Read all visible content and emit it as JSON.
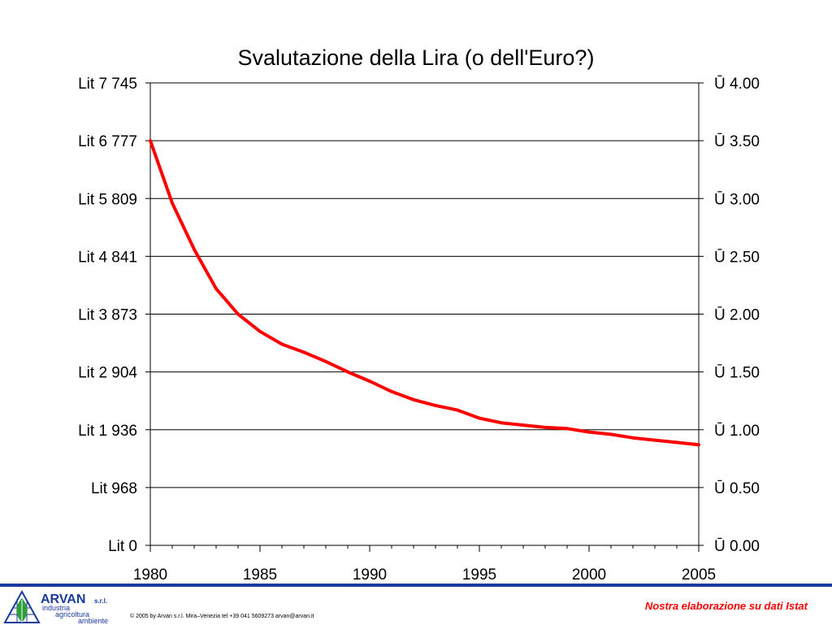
{
  "chart_data": {
    "type": "line",
    "title": "Svalutazione della Lira (o dell'Euro?)",
    "x_ticks": [
      "1980",
      "1985",
      "1990",
      "1995",
      "2000",
      "2005"
    ],
    "xlim": [
      1980,
      2005
    ],
    "left_axis": {
      "ylim": [
        0,
        7745
      ],
      "tick_labels": [
        "Lit 0",
        "Lit 968",
        "Lit 1 936",
        "Lit 2 904",
        "Lit 3 873",
        "Lit 4 841",
        "Lit 5 809",
        "Lit 6 777",
        "Lit 7 745"
      ]
    },
    "right_axis": {
      "ylim": [
        0,
        4.0
      ],
      "tick_labels": [
        "Ū 0.00",
        "Ū 0.50",
        "Ū 1.00",
        "Ū 1.50",
        "Ū 2.00",
        "Ū 2.50",
        "Ū 3.00",
        "Ū 3.50",
        "Ū 4.00"
      ]
    },
    "grid": true,
    "series": [
      {
        "axis": "right",
        "color": "#ff0000",
        "x": [
          1980,
          1981,
          1982,
          1983,
          1984,
          1985,
          1986,
          1987,
          1988,
          1989,
          1990,
          1991,
          1992,
          1993,
          1994,
          1995,
          1996,
          1997,
          1998,
          1999,
          2000,
          2001,
          2002,
          2003,
          2004,
          2005
        ],
        "y": [
          3.5,
          2.96,
          2.56,
          2.22,
          2.0,
          1.85,
          1.74,
          1.67,
          1.59,
          1.5,
          1.42,
          1.33,
          1.26,
          1.21,
          1.17,
          1.1,
          1.06,
          1.04,
          1.02,
          1.01,
          0.98,
          0.96,
          0.93,
          0.91,
          0.89,
          0.87
        ]
      }
    ]
  },
  "footer": {
    "accent_color": "#1a3a9e",
    "logo": {
      "name": "ARVAN",
      "suffix": "s.r.l.",
      "words": [
        "industria",
        "agricoltura",
        "ambiente"
      ]
    },
    "copyright": "© 2005 by Arvan s.r.l. Mira–Venezia tel +39 041 5609273 arvan@arvan.it",
    "source_note": "Nostra elaborazione su dati Istat",
    "source_note_color": "#ff0000"
  }
}
